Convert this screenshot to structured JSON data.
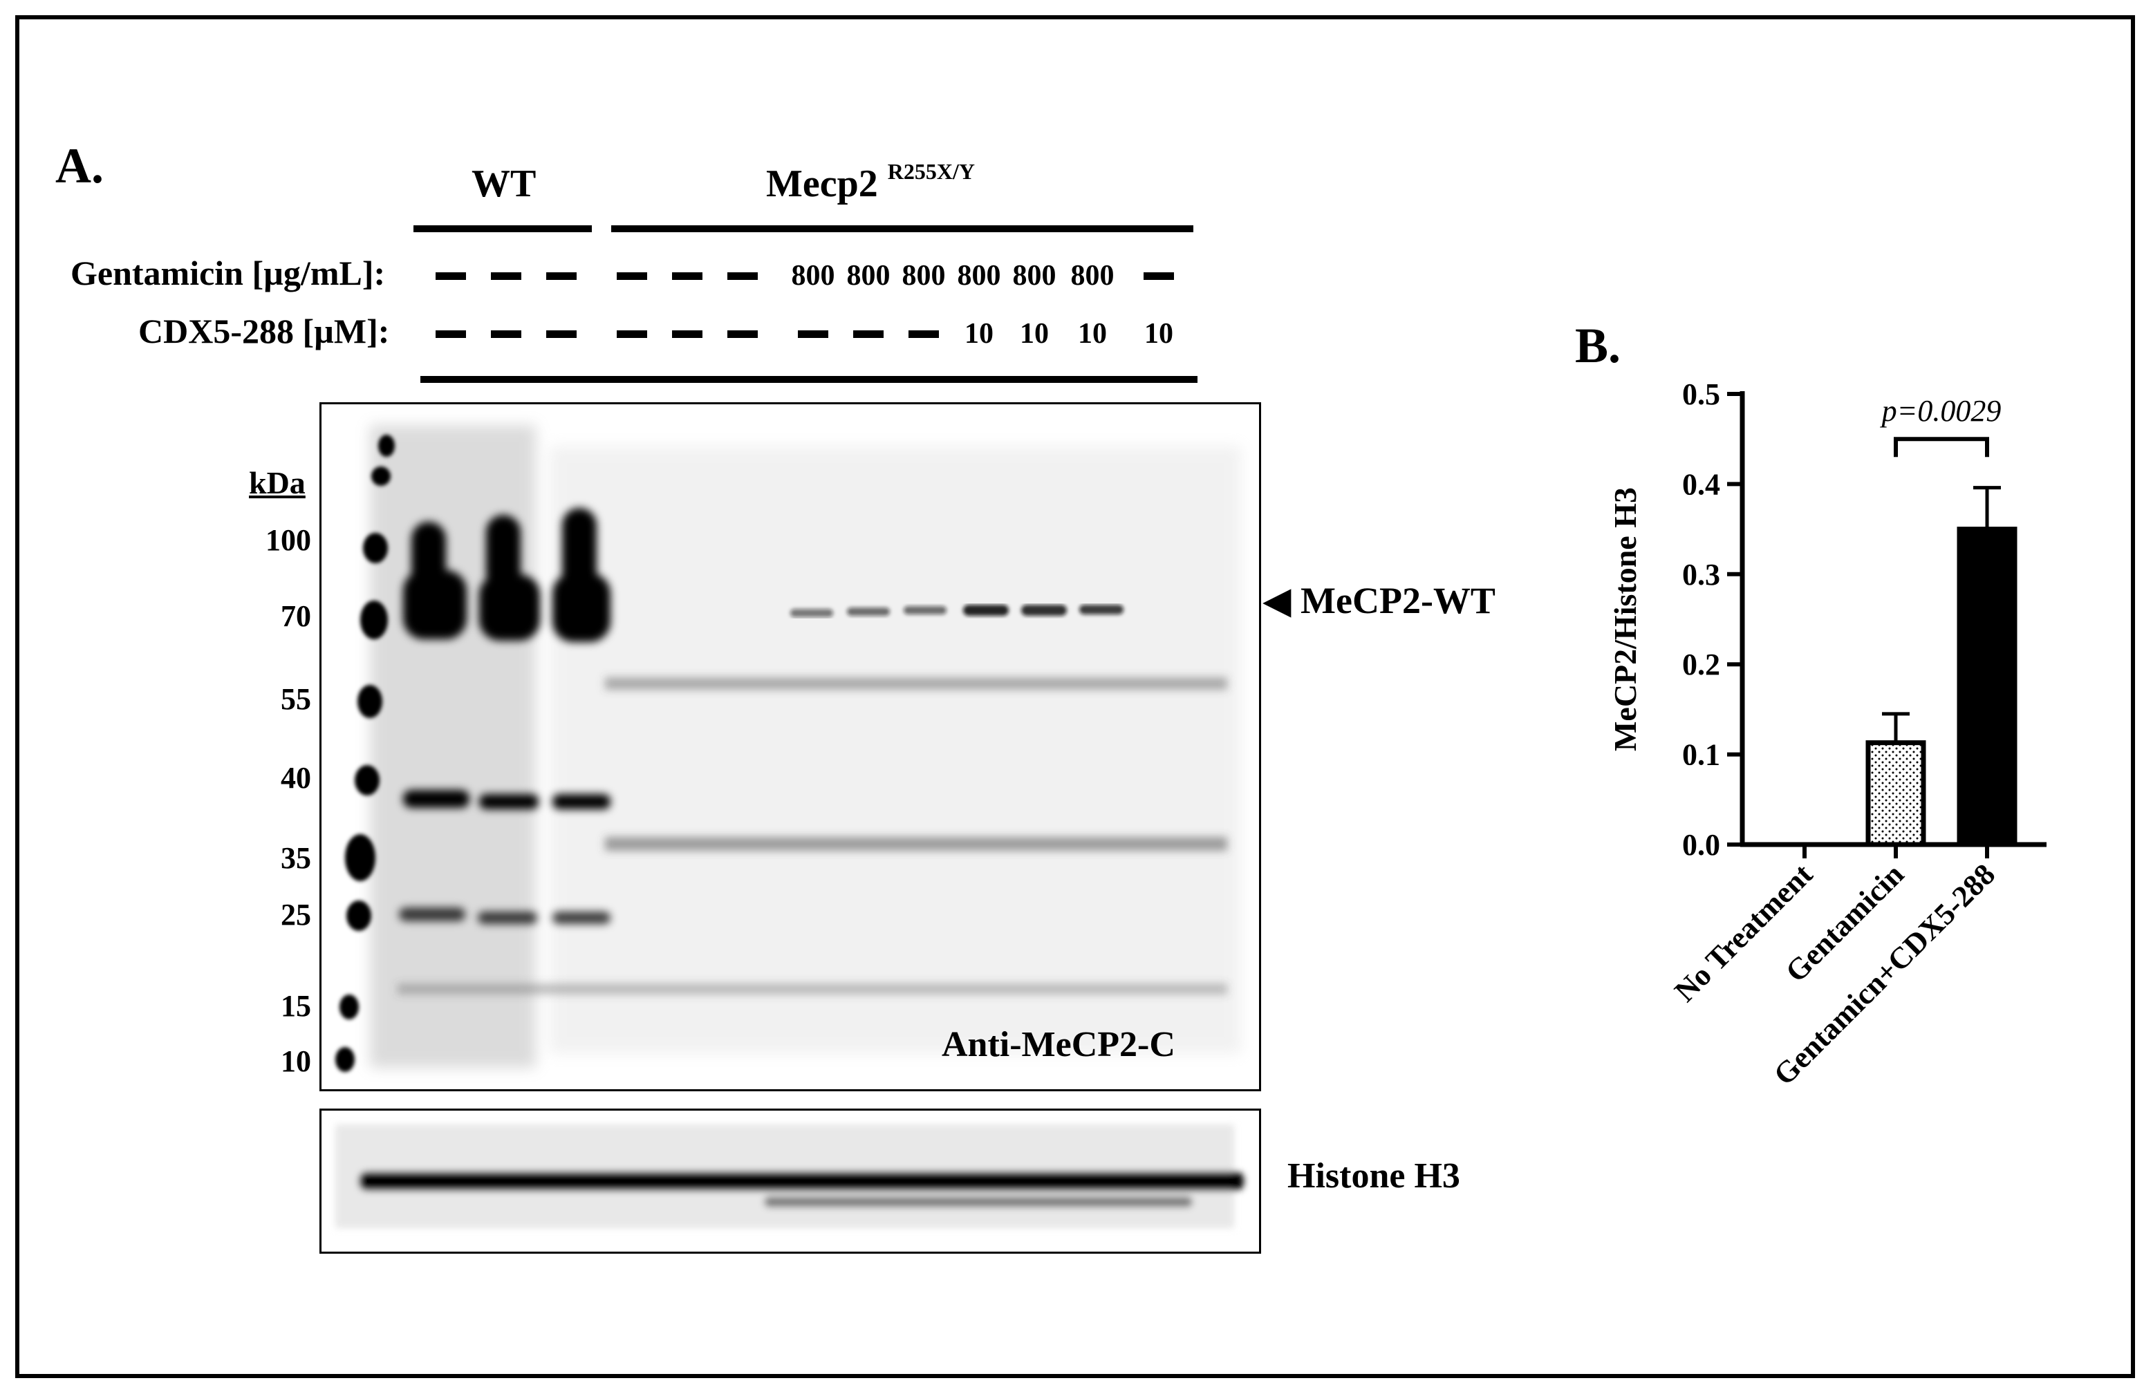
{
  "panel_a": {
    "label": "A.",
    "group_wt": "WT",
    "group_mut": "Mecp2",
    "group_mut_sup": "R255X/Y",
    "row1_label": "Gentamicin [µg/mL]:",
    "row2_label": "CDX5-288 [µM]:",
    "gentamicin_values": [
      "–",
      "–",
      "–",
      "–",
      "–",
      "–",
      "800",
      "800",
      "800",
      "800",
      "800",
      "800",
      "–"
    ],
    "cdx_values": [
      "–",
      "–",
      "–",
      "–",
      "–",
      "–",
      "–",
      "–",
      "–",
      "10",
      "10",
      "10",
      "10"
    ],
    "mw_unit": "kDa",
    "mw_markers": [
      "100",
      "70",
      "55",
      "40",
      "35",
      "25",
      "15",
      "10"
    ],
    "band_label": "MeCP2-WT",
    "antibody_label": "Anti-MeCP2-C",
    "loading_label": "Histone H3"
  },
  "panel_b": {
    "label": "B."
  },
  "chart_data": {
    "type": "bar",
    "categories": [
      "No Treatment",
      "Gentamicin",
      "Gentamicn+CDX5-288"
    ],
    "values": [
      0.0,
      0.113,
      0.35
    ],
    "errors": [
      0.0,
      0.032,
      0.046
    ],
    "fills": [
      "none",
      "dotted",
      "solid"
    ],
    "ylabel": "MeCP2/Histone H3",
    "xlabel": "",
    "ylim": [
      0,
      0.5
    ],
    "yticks": [
      "0.0",
      "0.1",
      "0.2",
      "0.3",
      "0.4",
      "0.5"
    ],
    "annotation": "p=0.0029",
    "annotation_between": [
      "Gentamicin",
      "Gentamicn+CDX5-288"
    ],
    "bar_color": "#000000"
  }
}
